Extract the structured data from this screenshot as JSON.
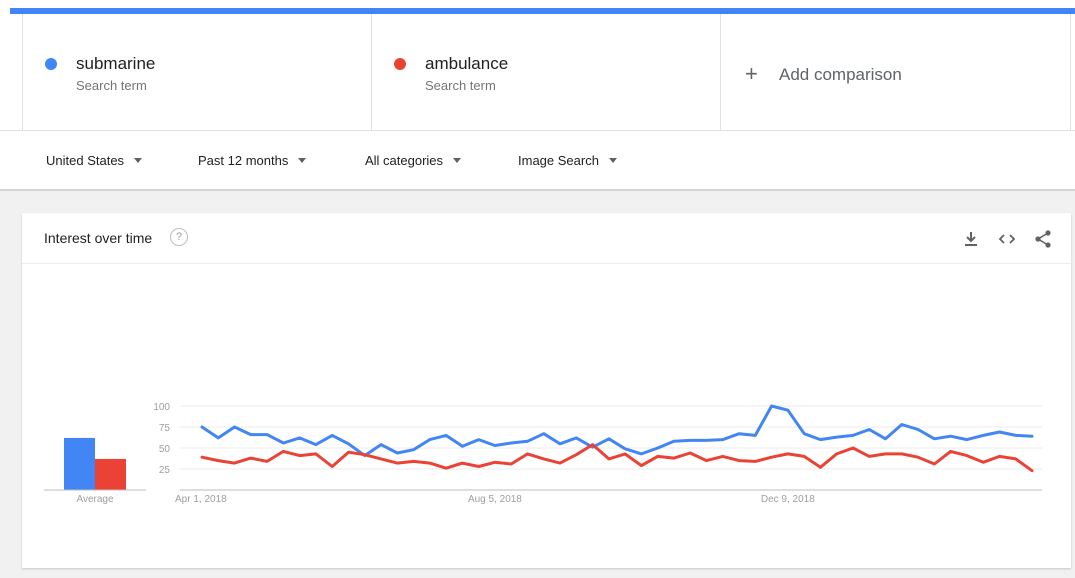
{
  "terms": [
    {
      "name": "submarine",
      "sub": "Search term",
      "color": "#4285f4"
    },
    {
      "name": "ambulance",
      "sub": "Search term",
      "color": "#ea4335"
    }
  ],
  "add_comparison": {
    "icon": "+",
    "label": "Add comparison"
  },
  "filters": {
    "region": "United States",
    "time": "Past 12 months",
    "category": "All categories",
    "property": "Image Search"
  },
  "card": {
    "title": "Interest over time",
    "help_icon": "?",
    "tools": [
      "download-icon",
      "embed-icon",
      "share-icon"
    ]
  },
  "chart_data": {
    "type": "line",
    "y_ticks": [
      25,
      50,
      75,
      100
    ],
    "ylim": [
      0,
      100
    ],
    "x_tick_labels": [
      "Apr 1, 2018",
      "Aug 5, 2018",
      "Dec 9, 2018"
    ],
    "average_label": "Average",
    "averages": [
      62,
      37
    ],
    "series": [
      {
        "name": "submarine",
        "color": "#4285f4",
        "values": [
          75,
          62,
          75,
          66,
          66,
          56,
          62,
          54,
          65,
          55,
          41,
          54,
          44,
          48,
          60,
          65,
          52,
          60,
          53,
          56,
          58,
          67,
          55,
          62,
          51,
          61,
          49,
          43,
          50,
          58,
          59,
          59,
          60,
          67,
          65,
          100,
          95,
          67,
          60,
          63,
          65,
          72,
          61,
          78,
          72,
          61,
          64,
          60,
          65,
          69,
          65,
          64
        ]
      },
      {
        "name": "ambulance",
        "color": "#ea4335",
        "values": [
          39,
          35,
          32,
          38,
          34,
          46,
          41,
          43,
          28,
          45,
          42,
          37,
          32,
          34,
          32,
          26,
          32,
          28,
          33,
          31,
          43,
          37,
          32,
          42,
          54,
          37,
          43,
          29,
          40,
          38,
          44,
          35,
          40,
          35,
          34,
          39,
          43,
          40,
          27,
          43,
          50,
          40,
          43,
          43,
          39,
          31,
          46,
          41,
          33,
          40,
          37,
          23
        ]
      }
    ]
  }
}
